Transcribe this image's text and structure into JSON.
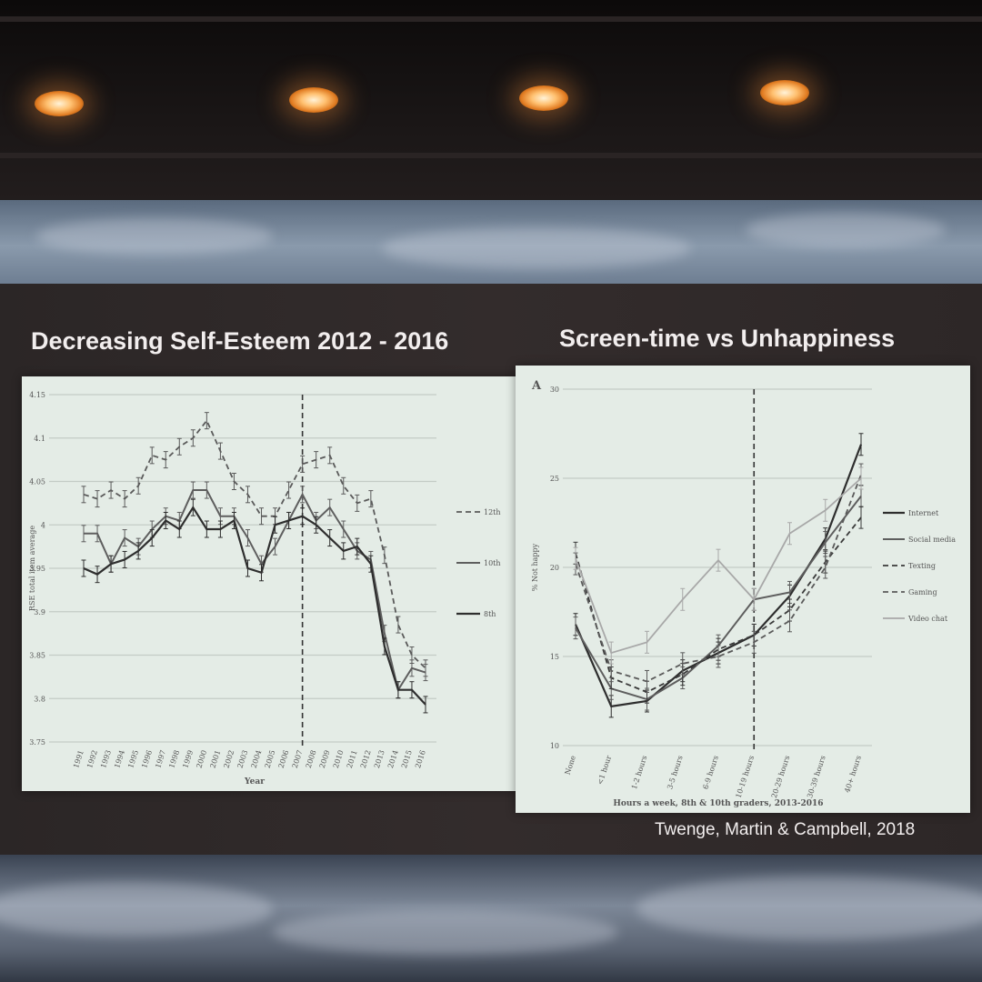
{
  "slide": {
    "title_left": "Decreasing Self-Esteem 2012 - 2016",
    "title_right": "Screen-time vs Unhappiness",
    "citation": "Twenge, Martin & Campbell, 2018"
  },
  "chart_data": [
    {
      "type": "line",
      "title": "",
      "xlabel": "Year",
      "ylabel": "RSE total item average",
      "ylim": [
        3.75,
        4.15
      ],
      "yticks": [
        "4.15",
        "4.1",
        "4.05",
        "4",
        "3.95",
        "3.9",
        "3.85",
        "3.8",
        "3.75"
      ],
      "x": [
        "1991",
        "1992",
        "1993",
        "1994",
        "1995",
        "1996",
        "1997",
        "1998",
        "1999",
        "2000",
        "2001",
        "2002",
        "2003",
        "2004",
        "2005",
        "2006",
        "2007",
        "2008",
        "2009",
        "2010",
        "2011",
        "2012",
        "2013",
        "2014",
        "2015",
        "2016"
      ],
      "vline_at": "2007",
      "grid": true,
      "legend_position": "right",
      "series": [
        {
          "name": "12th",
          "style": "dashed",
          "values": [
            4.035,
            4.03,
            4.04,
            4.03,
            4.045,
            4.08,
            4.075,
            4.09,
            4.1,
            4.12,
            4.085,
            4.05,
            4.035,
            4.01,
            4.01,
            4.04,
            4.07,
            4.075,
            4.08,
            4.045,
            4.025,
            4.03,
            3.965,
            3.885,
            3.85,
            3.835
          ]
        },
        {
          "name": "10th",
          "style": "solid",
          "values": [
            3.99,
            3.99,
            3.955,
            3.985,
            3.975,
            3.995,
            4.01,
            4.005,
            4.04,
            4.04,
            4.01,
            4.01,
            3.985,
            3.955,
            3.975,
            4.005,
            4.035,
            4.005,
            4.02,
            3.995,
            3.97,
            3.96,
            3.875,
            3.81,
            3.835,
            3.83
          ]
        },
        {
          "name": "8th",
          "style": "solid-dark",
          "values": [
            3.95,
            3.943,
            3.955,
            3.96,
            3.97,
            3.985,
            4.005,
            3.995,
            4.02,
            3.995,
            3.995,
            4.005,
            3.95,
            3.945,
            4.0,
            4.005,
            4.01,
            4.0,
            3.985,
            3.97,
            3.975,
            3.955,
            3.86,
            3.81,
            3.81,
            3.793
          ]
        }
      ]
    },
    {
      "type": "line",
      "panel_label": "A",
      "title": "",
      "xlabel": "Hours a week, 8th & 10th graders, 2013-2016",
      "ylabel": "% Not happy",
      "ylim": [
        10,
        30
      ],
      "yticks": [
        "30",
        "25",
        "20",
        "15",
        "10"
      ],
      "x": [
        "None",
        "<1 hour",
        "1-2 hours",
        "3-5 hours",
        "6-9 hours",
        "10-19 hours",
        "20-29 hours",
        "30-39 hours",
        "40+ hours"
      ],
      "vline_at": "10-19 hours",
      "grid": true,
      "legend_position": "right",
      "series": [
        {
          "name": "Internet",
          "style": "solid-dark",
          "values": [
            16.8,
            12.2,
            12.5,
            14.2,
            15.2,
            16.2,
            18.4,
            21.6,
            26.9
          ]
        },
        {
          "name": "Social media",
          "style": "solid",
          "values": [
            16.6,
            13.2,
            12.6,
            13.8,
            15.6,
            18.2,
            18.6,
            21.4,
            24.0
          ]
        },
        {
          "name": "Texting",
          "style": "dashed-dark",
          "values": [
            20.8,
            13.8,
            13.0,
            14.0,
            15.4,
            16.2,
            17.6,
            20.3,
            22.8
          ]
        },
        {
          "name": "Gaming",
          "style": "dashed",
          "values": [
            20.2,
            14.2,
            13.6,
            14.6,
            15.0,
            15.8,
            17.0,
            20.0,
            25.2
          ]
        },
        {
          "name": "Video chat",
          "style": "light",
          "values": [
            20.5,
            15.2,
            15.8,
            18.2,
            20.4,
            18.2,
            21.9,
            23.2,
            25.0
          ]
        }
      ]
    }
  ]
}
